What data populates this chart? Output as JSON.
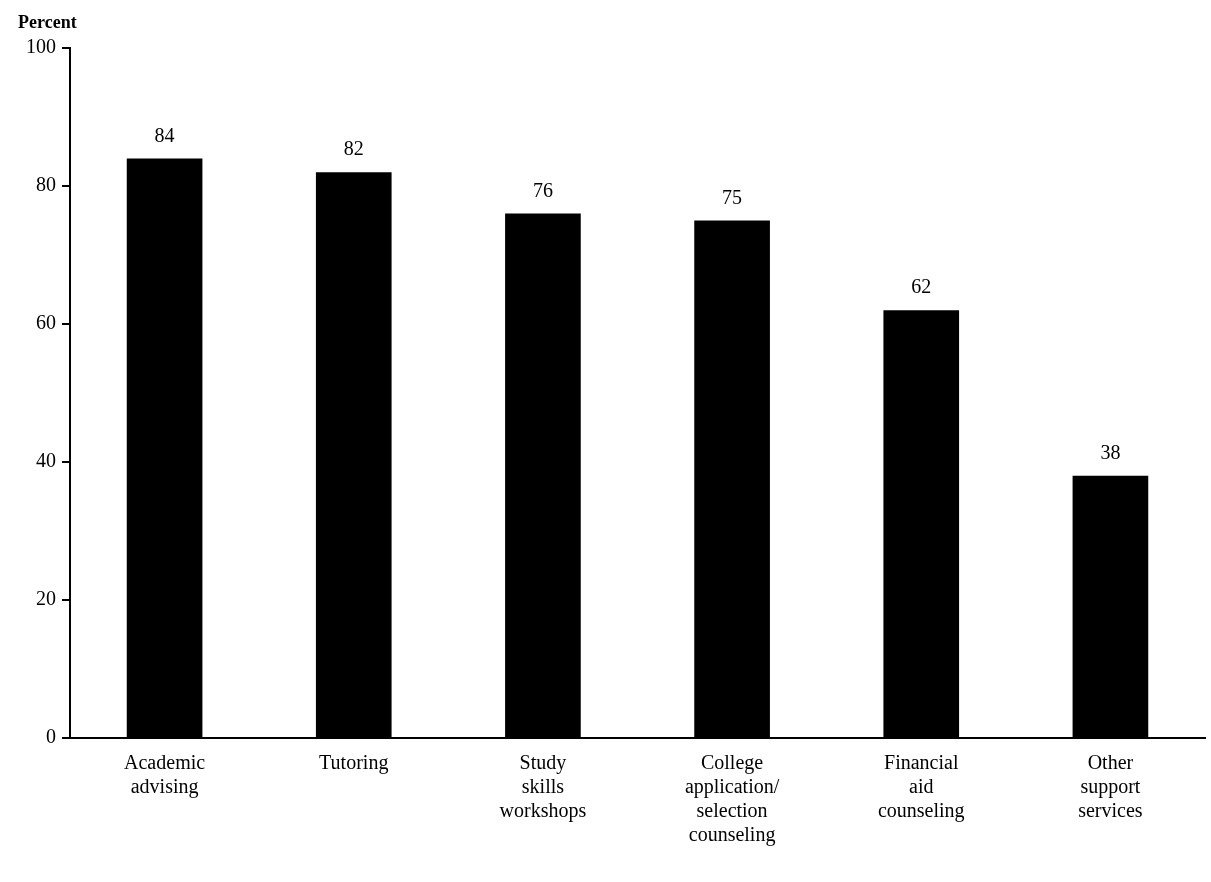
{
  "chart_data": {
    "type": "bar",
    "ylabel": "Percent",
    "categories": [
      "Academic advising",
      "Tutoring",
      "Study skills workshops",
      "College application/selection counseling",
      "Financial aid counseling",
      "Other support services"
    ],
    "values": [
      84,
      82,
      76,
      75,
      62,
      38
    ],
    "color": "#000000",
    "ylim": [
      0,
      100
    ],
    "yticks": [
      0,
      20,
      40,
      60,
      80,
      100
    ],
    "grid": false,
    "legend": false,
    "data_labels": true
  }
}
